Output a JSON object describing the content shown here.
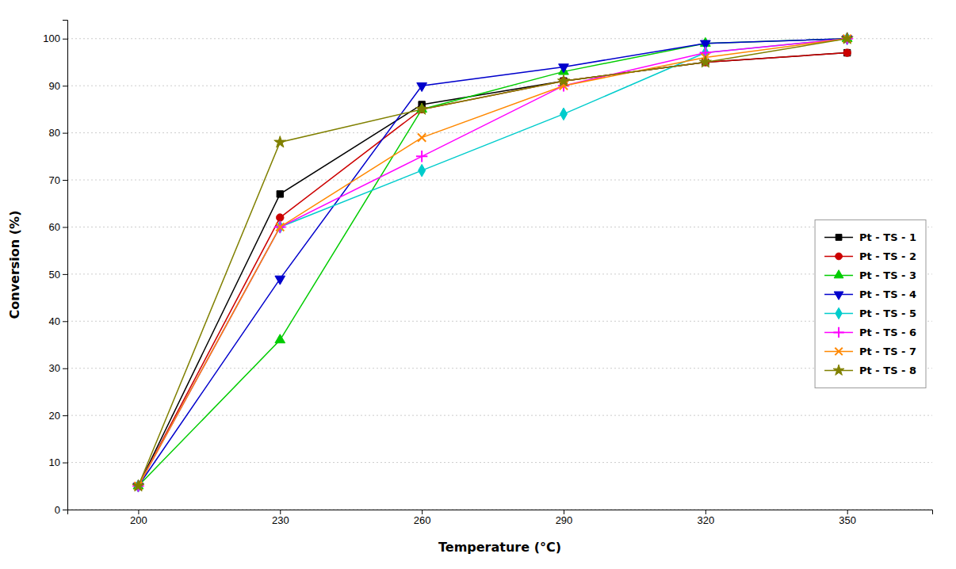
{
  "chart_data": {
    "type": "line",
    "xlabel": "Temperature (°C)",
    "ylabel": "Conversion (%)",
    "x": [
      200,
      230,
      260,
      290,
      320,
      350
    ],
    "series": [
      {
        "name": "Pt - TS - 1",
        "color": "#000000",
        "marker": "square",
        "values": [
          5,
          67,
          86,
          91,
          95,
          97
        ]
      },
      {
        "name": "Pt - TS - 2",
        "color": "#cc0000",
        "marker": "circle",
        "values": [
          5,
          62,
          85,
          91,
          95,
          97
        ]
      },
      {
        "name": "Pt - TS - 3",
        "color": "#00cc00",
        "marker": "triangle-up",
        "values": [
          5,
          36,
          85,
          93,
          99,
          100
        ]
      },
      {
        "name": "Pt - TS - 4",
        "color": "#0000cc",
        "marker": "triangle-down",
        "values": [
          5,
          49,
          90,
          94,
          99,
          100
        ]
      },
      {
        "name": "Pt - TS - 5",
        "color": "#00cccc",
        "marker": "diamond",
        "values": [
          5,
          60,
          72,
          84,
          97,
          100
        ]
      },
      {
        "name": "Pt - TS - 6",
        "color": "#ff00ff",
        "marker": "plus",
        "values": [
          5,
          60,
          75,
          90,
          97,
          100
        ]
      },
      {
        "name": "Pt - TS - 7",
        "color": "#ff8800",
        "marker": "x",
        "values": [
          5,
          60,
          79,
          90,
          96,
          100
        ]
      },
      {
        "name": "Pt - TS - 8",
        "color": "#808000",
        "marker": "star",
        "values": [
          5,
          78,
          85,
          91,
          95,
          100
        ]
      }
    ],
    "xlim": [
      185,
      368
    ],
    "ylim": [
      0,
      104
    ],
    "xticks": [
      200,
      230,
      260,
      290,
      320,
      350
    ],
    "yticks": [
      0,
      10,
      20,
      30,
      40,
      50,
      60,
      70,
      80,
      90,
      100
    ],
    "grid": "y",
    "legend": "right"
  }
}
